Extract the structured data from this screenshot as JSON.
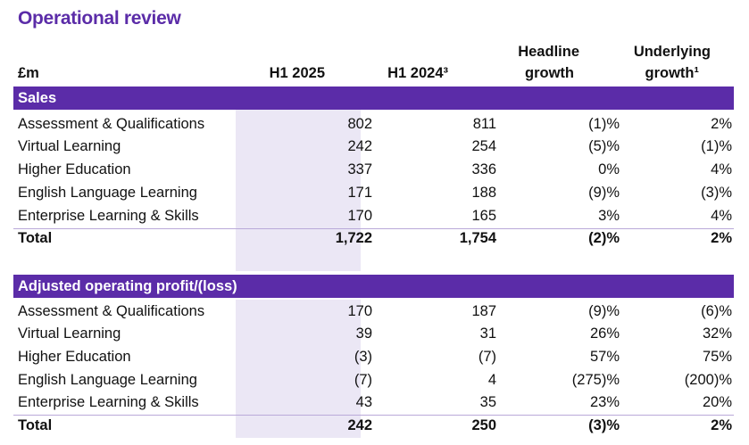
{
  "title": "Operational review",
  "header": {
    "unit": "£m",
    "col1": "H1 2025",
    "col2": "H1 2024³",
    "col3_line1": "Headline",
    "col3_line2": "growth",
    "col4_line1": "Underlying",
    "col4_line2": "growth¹"
  },
  "sections": [
    {
      "title": "Sales",
      "rows": [
        {
          "label": "Assessment & Qualifications",
          "h1_2025": "802",
          "h1_2024": "811",
          "headline": "(1)%",
          "underlying": "2%"
        },
        {
          "label": "Virtual Learning",
          "h1_2025": "242",
          "h1_2024": "254",
          "headline": "(5)%",
          "underlying": "(1)%"
        },
        {
          "label": "Higher Education",
          "h1_2025": "337",
          "h1_2024": "336",
          "headline": "0%",
          "underlying": "4%"
        },
        {
          "label": "English Language Learning",
          "h1_2025": "171",
          "h1_2024": "188",
          "headline": "(9)%",
          "underlying": "(3)%"
        },
        {
          "label": "Enterprise Learning & Skills",
          "h1_2025": "170",
          "h1_2024": "165",
          "headline": "3%",
          "underlying": "4%"
        },
        {
          "label": "Total",
          "h1_2025": "1,722",
          "h1_2024": "1,754",
          "headline": "(2)%",
          "underlying": "2%"
        }
      ]
    },
    {
      "title": "Adjusted operating profit/(loss)",
      "rows": [
        {
          "label": "Assessment & Qualifications",
          "h1_2025": "170",
          "h1_2024": "187",
          "headline": "(9)%",
          "underlying": "(6)%"
        },
        {
          "label": "Virtual Learning",
          "h1_2025": "39",
          "h1_2024": "31",
          "headline": "26%",
          "underlying": "32%"
        },
        {
          "label": "Higher Education",
          "h1_2025": "(3)",
          "h1_2024": "(7)",
          "headline": "57%",
          "underlying": "75%"
        },
        {
          "label": "English Language Learning",
          "h1_2025": "(7)",
          "h1_2024": "4",
          "headline": "(275)%",
          "underlying": "(200)%"
        },
        {
          "label": "Enterprise Learning & Skills",
          "h1_2025": "43",
          "h1_2024": "35",
          "headline": "23%",
          "underlying": "20%"
        },
        {
          "label": "Total",
          "h1_2025": "242",
          "h1_2024": "250",
          "headline": "(3)%",
          "underlying": "2%"
        }
      ]
    }
  ],
  "colors": {
    "accent": "#5b2ca8",
    "highlight_column": "#ebe7f5"
  }
}
